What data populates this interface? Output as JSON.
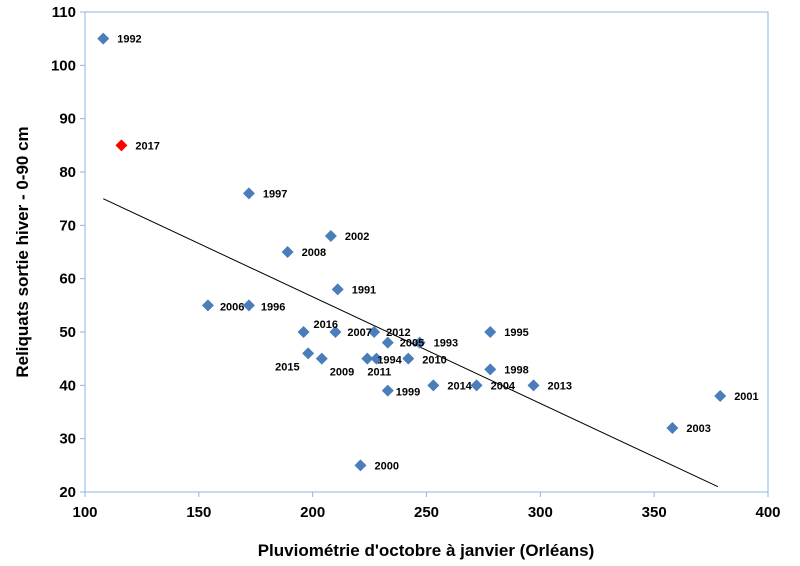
{
  "chart_data": {
    "type": "scatter",
    "title": "",
    "xlabel": "Pluviométrie d'octobre à janvier (Orléans)",
    "ylabel": "Reliquats sortie hiver - 0-90 cm",
    "xlim": [
      100,
      400
    ],
    "ylim": [
      20,
      110
    ],
    "x_ticks": [
      "100",
      "150",
      "200",
      "250",
      "300",
      "350",
      "400"
    ],
    "y_ticks": [
      "20",
      "30",
      "40",
      "50",
      "60",
      "70",
      "80",
      "90",
      "100",
      "110"
    ],
    "grid": false,
    "legend": "none",
    "colors": {
      "points": "#4a7ebb",
      "highlight": "#ff0000",
      "trend": "#000000",
      "plot_border": "#8eb4e3"
    },
    "points": [
      {
        "label": "1992",
        "x": 108,
        "y": 105
      },
      {
        "label": "2017",
        "x": 116,
        "y": 85,
        "highlight": true
      },
      {
        "label": "1997",
        "x": 172,
        "y": 76
      },
      {
        "label": "2002",
        "x": 208,
        "y": 68
      },
      {
        "label": "2008",
        "x": 189,
        "y": 65
      },
      {
        "label": "1991",
        "x": 211,
        "y": 58
      },
      {
        "label": "2006",
        "x": 154,
        "y": 55
      },
      {
        "label": "1996",
        "x": 172,
        "y": 55
      },
      {
        "label": "2016",
        "x": 196,
        "y": 50
      },
      {
        "label": "2007",
        "x": 210,
        "y": 50
      },
      {
        "label": "2012",
        "x": 227,
        "y": 50
      },
      {
        "label": "1995",
        "x": 278,
        "y": 50
      },
      {
        "label": "2005",
        "x": 233,
        "y": 48
      },
      {
        "label": "1993",
        "x": 247,
        "y": 48
      },
      {
        "label": "2015",
        "x": 198,
        "y": 46
      },
      {
        "label": "2009",
        "x": 204,
        "y": 45
      },
      {
        "label": "1994",
        "x": 224,
        "y": 45
      },
      {
        "label": "2011",
        "x": 228,
        "y": 45
      },
      {
        "label": "2010",
        "x": 242,
        "y": 45
      },
      {
        "label": "1998",
        "x": 278,
        "y": 43
      },
      {
        "label": "2014",
        "x": 253,
        "y": 40
      },
      {
        "label": "2004",
        "x": 272,
        "y": 40
      },
      {
        "label": "2013",
        "x": 297,
        "y": 40
      },
      {
        "label": "1999",
        "x": 233,
        "y": 39
      },
      {
        "label": "2001",
        "x": 379,
        "y": 38
      },
      {
        "label": "2003",
        "x": 358,
        "y": 32
      },
      {
        "label": "2000",
        "x": 221,
        "y": 25
      }
    ],
    "trendline": [
      {
        "x": 108,
        "y": 75
      },
      {
        "x": 378,
        "y": 21
      }
    ]
  }
}
